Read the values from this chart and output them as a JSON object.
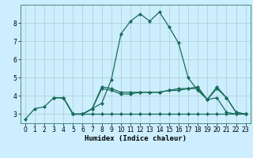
{
  "xlabel": "Humidex (Indice chaleur)",
  "background_color": "#cceeff",
  "line_color": "#1a6b5a",
  "grid_color": "#aacccc",
  "xlim": [
    -0.5,
    23.5
  ],
  "ylim": [
    2.5,
    9.0
  ],
  "yticks": [
    3,
    4,
    5,
    6,
    7,
    8
  ],
  "xticks": [
    0,
    1,
    2,
    3,
    4,
    5,
    6,
    7,
    8,
    9,
    10,
    11,
    12,
    13,
    14,
    15,
    16,
    17,
    18,
    19,
    20,
    21,
    22,
    23
  ],
  "lines": [
    {
      "x": [
        0,
        1,
        2,
        3,
        4,
        5,
        6,
        7,
        8,
        9,
        10,
        11,
        12,
        13,
        14,
        15,
        16,
        17,
        18,
        19,
        20,
        21,
        22,
        23
      ],
      "y": [
        2.7,
        3.3,
        3.4,
        3.9,
        3.9,
        3.0,
        3.0,
        3.3,
        3.6,
        4.9,
        7.4,
        8.1,
        8.5,
        8.1,
        8.6,
        7.8,
        6.9,
        5.0,
        4.3,
        3.8,
        3.9,
        3.1,
        3.0,
        3.0
      ]
    },
    {
      "x": [
        5,
        6,
        7,
        8,
        9,
        10,
        11,
        12,
        13,
        14,
        15,
        16,
        17,
        18,
        19,
        20,
        21,
        22,
        23
      ],
      "y": [
        3.0,
        3.0,
        3.0,
        3.0,
        3.0,
        3.0,
        3.0,
        3.0,
        3.0,
        3.0,
        3.0,
        3.0,
        3.0,
        3.0,
        3.0,
        3.0,
        3.0,
        3.0,
        3.0
      ]
    },
    {
      "comment": "mid line ~4.1-4.4",
      "x": [
        3,
        4,
        5,
        6,
        7,
        8,
        9,
        10,
        11,
        12,
        13,
        14,
        15,
        16,
        17,
        18,
        19,
        20,
        21,
        22,
        23
      ],
      "y": [
        3.9,
        3.9,
        3.0,
        3.0,
        3.3,
        4.4,
        4.3,
        4.1,
        4.1,
        4.2,
        4.2,
        4.2,
        4.3,
        4.3,
        4.4,
        4.4,
        3.8,
        4.4,
        3.9,
        3.1,
        3.0
      ]
    },
    {
      "x": [
        3,
        4,
        5,
        6,
        7,
        8,
        9,
        10,
        11,
        12,
        13,
        14,
        15,
        16,
        17,
        18,
        19,
        20,
        21,
        22,
        23
      ],
      "y": [
        3.9,
        3.9,
        3.0,
        3.0,
        3.3,
        4.5,
        4.4,
        4.2,
        4.2,
        4.2,
        4.2,
        4.2,
        4.3,
        4.4,
        4.4,
        4.5,
        3.8,
        4.5,
        3.9,
        3.1,
        3.0
      ]
    }
  ]
}
